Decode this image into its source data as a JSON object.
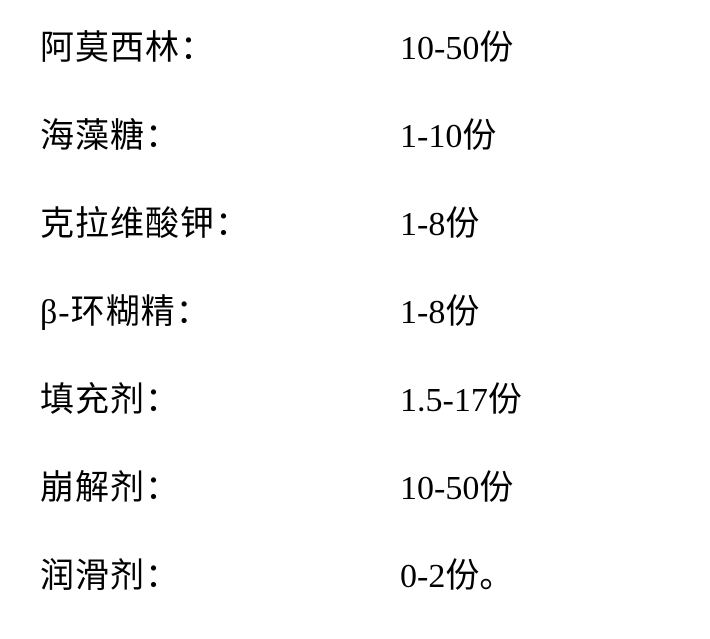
{
  "table": {
    "type": "table",
    "background_color": "#ffffff",
    "text_color": "#000000",
    "font_family": "SimSun",
    "label_fontsize": 34,
    "value_fontsize": 34,
    "row_spacing": 48,
    "label_column_width": 360,
    "rows": [
      {
        "label": "阿莫西林：",
        "value": "10-50份"
      },
      {
        "label": "海藻糖：",
        "value": "1-10份"
      },
      {
        "label": "克拉维酸钾：",
        "value": "1-8份"
      },
      {
        "label": "β-环糊精：",
        "value": "1-8份"
      },
      {
        "label": "填充剂：",
        "value": "1.5-17份"
      },
      {
        "label": "崩解剂：",
        "value": "10-50份"
      },
      {
        "label": "润滑剂：",
        "value": "0-2份。"
      }
    ]
  }
}
